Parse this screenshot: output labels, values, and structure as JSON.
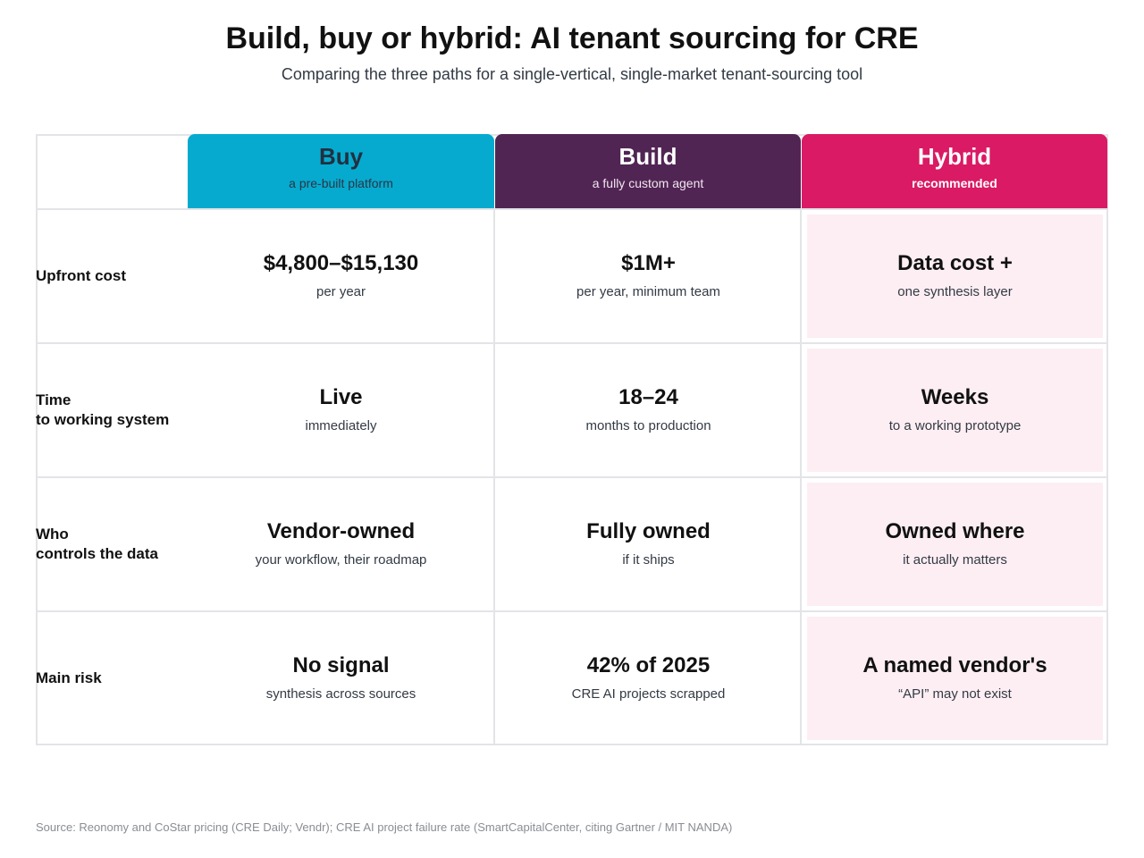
{
  "title": "Build, buy or hybrid: AI tenant sourcing for CRE",
  "subtitle": "Comparing the three paths for a single-vertical, single-market tenant-sourcing tool",
  "columns": [
    {
      "name": "Buy",
      "description": "a pre-built platform",
      "color": "#06aacf"
    },
    {
      "name": "Build",
      "description": "a fully custom agent",
      "color": "#512553"
    },
    {
      "name": "Hybrid",
      "description": "recommended",
      "color": "#da1a64"
    }
  ],
  "rows": [
    {
      "label": "Upfront cost",
      "cells": [
        {
          "value": "$4,800–$15,130",
          "note": "per year"
        },
        {
          "value": "$1M+",
          "note": "per year, minimum team"
        },
        {
          "value": "Data cost +",
          "note": "one synthesis layer"
        }
      ]
    },
    {
      "label": "Time\nto working system",
      "cells": [
        {
          "value": "Live",
          "note": "immediately"
        },
        {
          "value": "18–24",
          "note": "months to production"
        },
        {
          "value": "Weeks",
          "note": "to a working prototype"
        }
      ]
    },
    {
      "label": "Who\ncontrols the data",
      "cells": [
        {
          "value": "Vendor-owned",
          "note": "your workflow, their roadmap"
        },
        {
          "value": "Fully owned",
          "note": "if it ships"
        },
        {
          "value": "Owned where",
          "note": "it actually matters"
        }
      ]
    },
    {
      "label": "Main risk",
      "cells": [
        {
          "value": "No signal",
          "note": "synthesis across sources"
        },
        {
          "value": "42% of 2025",
          "note": "CRE AI projects scrapped"
        },
        {
          "value": "A named vendor's",
          "note": "“API” may not exist"
        }
      ]
    }
  ],
  "source": "Source: Reonomy and CoStar pricing (CRE Daily; Vendr); CRE AI project failure rate (SmartCapitalCenter, citing Gartner / MIT NANDA)"
}
